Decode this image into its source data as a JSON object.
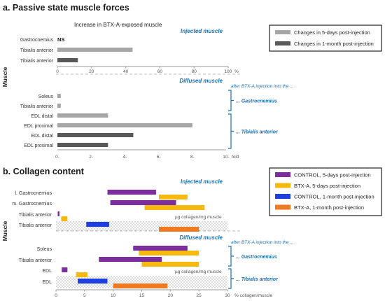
{
  "chart_data": [
    {
      "type": "bar",
      "title": "a. Passive state muscle forces",
      "subtitle": "Increase in BTX-A-exposed muscle",
      "legend": {
        "placement": "top-right",
        "entries": [
          {
            "name": "Changes in 5-days post-injection",
            "color": "#a6a6a6"
          },
          {
            "name": "Changes in 1-month post-injection",
            "color": "#595959"
          }
        ]
      },
      "ylabel": "Muscle",
      "panels": [
        {
          "label": "Injected muscle",
          "xunit": "%",
          "xlim": [
            0,
            100
          ],
          "ticks": [
            "0",
            "20",
            "40",
            "60",
            "80",
            "100"
          ],
          "rows": [
            {
              "category": "Gastrocnemius",
              "value": null,
              "text": "NS",
              "series": "5d"
            },
            {
              "category": "Tibialis anterior",
              "value": 44,
              "series": "5d"
            },
            {
              "category": "Tibialis anterior",
              "value": 12,
              "series": "1m"
            }
          ]
        },
        {
          "label": "Diffused muscle",
          "note": "after BTX-A injection into the ...",
          "groups": [
            "... Gastrocnemius",
            "... Tibialis anterior"
          ],
          "xunit": "fold",
          "xlim": [
            0,
            10
          ],
          "ticks": [
            "0-",
            "2-",
            "4-",
            "6-",
            "8-",
            "10-"
          ],
          "rows": [
            {
              "category": "Soleus",
              "value": 0.2,
              "series": "5d",
              "group": 0
            },
            {
              "category": "Tibialis anterior",
              "value": 0.2,
              "series": "5d",
              "group": 0
            },
            {
              "category": "EDL distal",
              "value": 3,
              "series": "5d",
              "group": 1
            },
            {
              "category": "EDL proximal",
              "value": 8,
              "series": "5d",
              "group": 1
            },
            {
              "category": "EDL distal",
              "value": 4.5,
              "series": "1m",
              "group": 1
            },
            {
              "category": "EDL proximal",
              "value": 3,
              "series": "1m",
              "group": 1
            }
          ]
        }
      ]
    },
    {
      "type": "bar",
      "title": "b. Collagen content",
      "legend": {
        "placement": "top-right",
        "entries": [
          {
            "name": "CONTROL, 5-days post-injection",
            "color": "#7b2d9e"
          },
          {
            "name": "BTX-A, 5-days post-injection",
            "color": "#f5b90f"
          },
          {
            "name": "CONTROL, 1-month post-injection",
            "color": "#1e3fe0"
          },
          {
            "name": "BTX-A, 1-month post-injection",
            "color": "#f07a22"
          }
        ]
      },
      "ylabel": "Muscle",
      "xlabel": "% collagen/muscle",
      "xlim": [
        0,
        30
      ],
      "ticks": [
        "0",
        "5",
        "10",
        "15",
        "20",
        "25",
        "30"
      ],
      "dotted_region_label": "µg collagen/mg muscle",
      "panels": [
        {
          "label": "Injected muscle",
          "categories": [
            "l. Gastrocnemius",
            "m. Gastrocnemius",
            "Tibialis anterior",
            "Tibialis anterior"
          ],
          "ranges": [
            {
              "row": 0,
              "series": "ctrl5d",
              "from": 9,
              "to": 17.5
            },
            {
              "row": 0,
              "series": "btx5d",
              "from": 18,
              "to": 23
            },
            {
              "row": 1,
              "series": "ctrl5d",
              "from": 9.5,
              "to": 21
            },
            {
              "row": 1,
              "series": "btx5d",
              "from": 15.5,
              "to": 26
            },
            {
              "row": 2,
              "series": "ctrl5d",
              "from": 0.3,
              "to": 0.6
            },
            {
              "row": 2,
              "series": "btx5d",
              "from": 0.9,
              "to": 2
            },
            {
              "row": 3,
              "series": "ctrl1m",
              "from": 5.3,
              "to": 9.3
            },
            {
              "row": 3,
              "series": "btx1m",
              "from": 18,
              "to": 25
            }
          ]
        },
        {
          "label": "Diffused muscle",
          "note": "after BTX-A injection into the ...",
          "groups": [
            "... Gastrocnemius",
            "... Tibialis anterior"
          ],
          "categories": [
            "Soleus",
            "Tibialis anterior",
            "EDL",
            "EDL"
          ],
          "ranges": [
            {
              "row": 0,
              "series": "ctrl5d",
              "from": 13.5,
              "to": 23
            },
            {
              "row": 0,
              "series": "btx5d",
              "from": 14.5,
              "to": 25
            },
            {
              "row": 1,
              "series": "ctrl5d",
              "from": 7.5,
              "to": 18.5
            },
            {
              "row": 1,
              "series": "btx5d",
              "from": 15,
              "to": 25
            },
            {
              "row": 2,
              "series": "ctrl5d",
              "from": 1,
              "to": 2
            },
            {
              "row": 2,
              "series": "btx5d",
              "from": 3.5,
              "to": 5.5
            },
            {
              "row": 3,
              "series": "ctrl1m",
              "from": 3.8,
              "to": 9
            },
            {
              "row": 3,
              "series": "btx1m",
              "from": 10,
              "to": 19.5
            }
          ]
        }
      ]
    }
  ]
}
